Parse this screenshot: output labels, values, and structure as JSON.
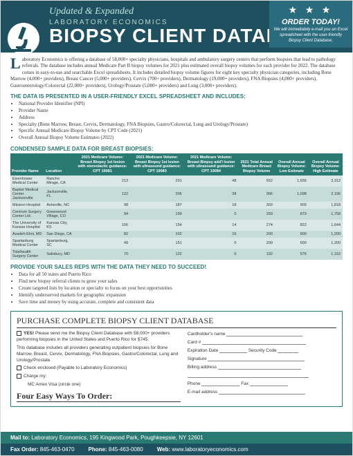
{
  "header": {
    "updated": "Updated & Expanded",
    "brand": "LABORATORY ECONOMICS",
    "title": "BIOPSY CLIENT DATABASE",
    "order_box": {
      "title": "ORDER TODAY!",
      "sub": "We will immediately e-mail you an Excel spreadsheet with the user-friendly Biopsy Client Database."
    }
  },
  "intro": "aboratory Economics is offering a database of 58,000+ specialty physicians, hospitals and ambulatory surgery centers that perform biopsies that lead to pathology referrals. The database includes annual Medicare Part B biopsy volumes for 2021 plus estimated overall biopsy volumes for each provider for 2022. The database comes in easy-to-use and searchable Excel spreadsheets. It includes detailed biopsy volume figures for eight key specialty physician categories, including Bone Marrow (4,000+ providers), Breast Cancer (5,000+ providers), Cervix (700+ providers), Dermatology (19,000+ providers), FNA Biopsies (4,000+ providers), Gastroenterology/Colorectal (22,000+ providers), Urology/Prostate (5,000+ providers) and Lung (3,000+ providers).",
  "section_data_h": "THE DATA IS PRESENTED IN A USER-FRIENDLY EXCEL SPREADSHEET AND INCLUDES:",
  "data_bullets": [
    "National Provider Identifier (NPI)",
    "Provider Name",
    "Address",
    "Specialty (Bone Marrow, Breast, Cervix, Dermatology, FNA Biopsies, Gastro/Colorectal, Lung and Urology/Prostate)",
    "Specific Annual Medicare Biopsy Volume by CPT Code (2021)",
    "Overall Annual Biopsy Volume Estimates (2022)"
  ],
  "sample_h": "CONDENSED SAMPLE DATA FOR BREAST BIOPSIES:",
  "table": {
    "columns": [
      "Provider Name",
      "Location",
      "2021 Medicare Volume: Breast Biopsy 1st lesion with stereotactic guidance: CPT 19081",
      "2021 Medicare Volume: Breast Biopsy 1st lesion with ultrasound guidance: CPT 19083",
      "2021 Medicare Volume: Breast Biopsy add'l lesion with ultrasound guidance: CPT 19084",
      "2021 Total Annual Medicare Breast Biopsy Volume",
      "Overall Annual Biopsy Volume: Low Estimate",
      "Overall Annual Biopsy Volume: High Estimate"
    ],
    "rows": [
      [
        "Eisenhower Medical Center",
        "Rancho Mirage, CA",
        "213",
        "291",
        "48",
        "552",
        "1,656",
        "3,312"
      ],
      [
        "Baptist Medical Center Jacksonville",
        "Jacksonville, FL",
        "122",
        "206",
        "38",
        "366",
        "1,098",
        "2,196"
      ],
      [
        "Mission Hospital",
        "Asheville, NC",
        "98",
        "187",
        "18",
        "303",
        "909",
        "1,818"
      ],
      [
        "Centrum Surgery Center Ltd.",
        "Greenwood Village, CO",
        "94",
        "199",
        "0",
        "293",
        "879",
        "1,758"
      ],
      [
        "The University of Kansas Hospital",
        "Kansas City, KS",
        "106",
        "154",
        "14",
        "274",
        "822",
        "1,644"
      ],
      [
        "Azadeh Elmi, MD",
        "San Diego, CA",
        "82",
        "102",
        "16",
        "200",
        "600",
        "1,200"
      ],
      [
        "Spartanburg Medical Center",
        "Spartanburg, SC",
        "49",
        "151",
        "0",
        "200",
        "600",
        "1,200"
      ],
      [
        "Tidalhealth Surgery Center",
        "Salisbury, MD",
        "70",
        "122",
        "0",
        "192",
        "576",
        "1,152"
      ]
    ]
  },
  "reps_h": "PROVIDE YOUR SALES REPS WITH THE DATA THEY NEED TO SUCCEED!",
  "reps_bullets": [
    "Data for all 50 states and Puerto Rico",
    "Find new biopsy referral clients to grow your sales",
    "Create targeted lists by location or specialty to focus on your best opportunities",
    "Identify underserved markets for geographic expansion",
    "Save time and money by using accurate, complete and consistent data"
  ],
  "form": {
    "purchase_h": "PURCHASE COMPLETE BIOPSY CLIENT DATABASE",
    "yes": "YES! Please send me the Biopsy Client Database with 58,000+ providers performing biopsies in the United States and Puerto Rico for $745.",
    "note": "This database includes all providers generating outpatient biopsies for Bone Marrow, Breast, Cervix, Dermatology, FNA Biopsies, Gastro/Colorectal, Lung and Urology/Prostate.",
    "check_enclosed": "Check enclosed (Payable to Laboratory Economics)",
    "charge": "Charge my:",
    "cards": "MC        Amex        Visa  (circle one)",
    "four_ways": "Four Easy Ways To Order:",
    "fields": {
      "cardholder": "Cardholder's name",
      "cardnum": "Card #",
      "exp": "Expiration Date",
      "sec": "Security Code",
      "sig": "Signature",
      "bill": "Billing address",
      "phone": "Phone",
      "fax": "Fax",
      "email": "E-mail address"
    }
  },
  "footer": {
    "mail_lbl": "Mail to:",
    "mail": "Laboratory Economics, 195 Kingwood Park, Poughkeepsie, NY 12601",
    "fax_lbl": "Fax Order:",
    "fax": "845-463-0470",
    "phone_lbl": "Phone:",
    "phone": "845-463-0080",
    "web_lbl": "Web:",
    "web": "www.laboratoryeconomics.com"
  },
  "colors": {
    "dark_teal": "#1e5060",
    "teal": "#2a7a74",
    "light_teal": "#d9e8e6"
  }
}
